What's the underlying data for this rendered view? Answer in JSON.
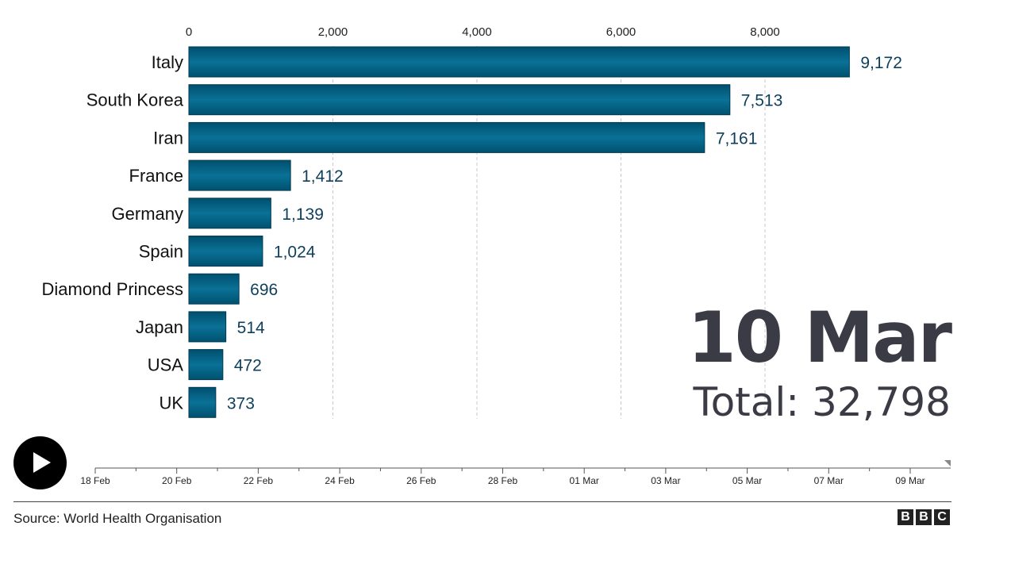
{
  "chart_data": {
    "type": "bar",
    "orientation": "horizontal",
    "categories": [
      "Italy",
      "South Korea",
      "Iran",
      "France",
      "Germany",
      "Spain",
      "Diamond Princess",
      "Japan",
      "USA",
      "UK"
    ],
    "values": [
      9172,
      7513,
      7161,
      1412,
      1139,
      1024,
      696,
      514,
      472,
      373
    ],
    "value_labels": [
      "9,172",
      "7,513",
      "7,161",
      "1,412",
      "1,139",
      "1,024",
      "696",
      "514",
      "472",
      "373"
    ],
    "xlim": [
      0,
      10000
    ],
    "x_ticks": [
      0,
      2000,
      4000,
      6000,
      8000
    ],
    "x_tick_labels": [
      "0",
      "2,000",
      "4,000",
      "6,000",
      "8,000"
    ],
    "grid": true,
    "bar_color": "#006d8f"
  },
  "overlay": {
    "date": "10 Mar",
    "total": "Total: 32,798"
  },
  "timeline": {
    "labels": [
      "18 Feb",
      "20 Feb",
      "22 Feb",
      "24 Feb",
      "26 Feb",
      "28 Feb",
      "01 Mar",
      "03 Mar",
      "05 Mar",
      "07 Mar",
      "09 Mar"
    ]
  },
  "footer": {
    "source": "Source: World Health Organisation",
    "logo_letters": [
      "B",
      "B",
      "C"
    ]
  },
  "controls": {
    "play_icon": "play-icon"
  }
}
